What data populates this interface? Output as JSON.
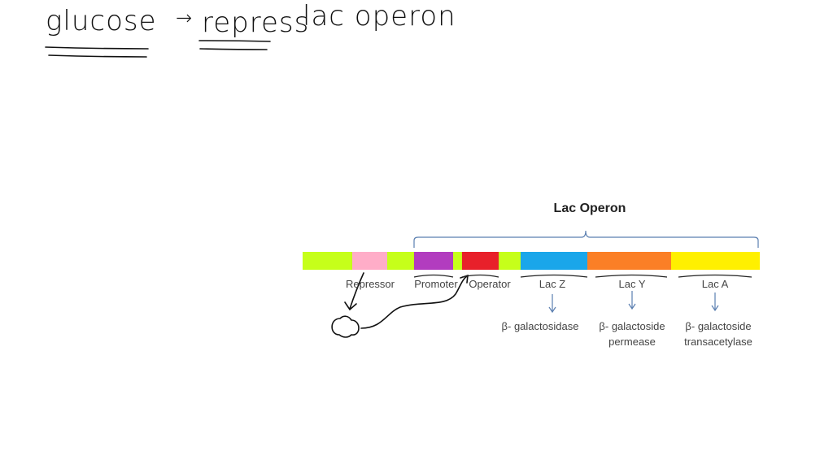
{
  "handwriting": {
    "word1": "glucose",
    "arrow": "→",
    "word2": "repress",
    "word3": "lac operon"
  },
  "diagram": {
    "title": "Lac Operon",
    "segments": [
      {
        "name": "spacer",
        "color": "#c6ff1a"
      },
      {
        "name": "repressor",
        "color": "#ffadc8"
      },
      {
        "name": "spacer",
        "color": "#c6ff1a"
      },
      {
        "name": "promoter",
        "color": "#b23cbf"
      },
      {
        "name": "spacer",
        "color": "#c6ff1a"
      },
      {
        "name": "operator",
        "color": "#e8202a"
      },
      {
        "name": "spacer",
        "color": "#c6ff1a"
      },
      {
        "name": "lac-z",
        "color": "#1aa6ea"
      },
      {
        "name": "lac-y",
        "color": "#fb7f26"
      },
      {
        "name": "lac-a",
        "color": "#fff000"
      }
    ],
    "labels": {
      "repressor": "Repressor",
      "promoter": "Promoter",
      "operator": "Operator",
      "lac_z": "Lac Z",
      "lac_y": "Lac Y",
      "lac_a": "Lac A"
    },
    "products": {
      "lac_z": [
        "β- galactosidase"
      ],
      "lac_y": [
        "β- galactoside",
        "permease"
      ],
      "lac_a": [
        "β- galactoside",
        "transacetylase"
      ]
    }
  }
}
